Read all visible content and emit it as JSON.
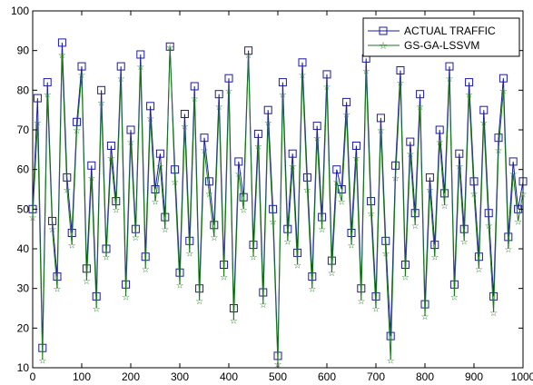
{
  "chart_data": {
    "type": "line",
    "title": "",
    "xlabel": "",
    "ylabel": "",
    "xlim": [
      0,
      1000
    ],
    "ylim": [
      10,
      100
    ],
    "xticks": [
      0,
      100,
      200,
      300,
      400,
      500,
      600,
      700,
      800,
      900,
      1000
    ],
    "yticks": [
      10,
      20,
      30,
      40,
      50,
      60,
      70,
      80,
      90,
      100
    ],
    "grid": false,
    "legend_position": "top-right",
    "series": [
      {
        "name": "ACTUAL TRAFFIC",
        "color": "#1a1aa6",
        "marker": "square",
        "x": [
          0,
          10,
          20,
          30,
          40,
          50,
          60,
          70,
          80,
          90,
          100,
          110,
          120,
          130,
          140,
          150,
          160,
          170,
          180,
          190,
          200,
          210,
          220,
          230,
          240,
          250,
          260,
          270,
          280,
          290,
          300,
          310,
          320,
          330,
          340,
          350,
          360,
          370,
          380,
          390,
          400,
          410,
          420,
          430,
          440,
          450,
          460,
          470,
          480,
          490,
          500,
          510,
          520,
          530,
          540,
          550,
          560,
          570,
          580,
          590,
          600,
          610,
          620,
          630,
          640,
          650,
          660,
          670,
          680,
          690,
          700,
          710,
          720,
          730,
          740,
          750,
          760,
          770,
          780,
          790,
          800,
          810,
          820,
          830,
          840,
          850,
          860,
          870,
          880,
          890,
          900,
          910,
          920,
          930,
          940,
          950,
          960,
          970,
          980,
          990,
          1000
        ],
        "values": [
          50,
          78,
          15,
          82,
          47,
          33,
          92,
          58,
          44,
          72,
          86,
          35,
          61,
          28,
          80,
          40,
          66,
          52,
          86,
          31,
          70,
          45,
          89,
          38,
          76,
          55,
          64,
          48,
          91,
          60,
          34,
          74,
          42,
          81,
          30,
          68,
          57,
          46,
          79,
          36,
          83,
          25,
          62,
          53,
          90,
          41,
          69,
          29,
          75,
          50,
          13,
          82,
          45,
          64,
          39,
          87,
          58,
          33,
          71,
          48,
          84,
          37,
          60,
          55,
          77,
          44,
          66,
          30,
          88,
          52,
          28,
          73,
          42,
          18,
          61,
          85,
          36,
          67,
          49,
          79,
          26,
          58,
          41,
          70,
          54,
          86,
          31,
          64,
          45,
          82,
          57,
          38,
          75,
          49,
          28,
          68,
          83,
          43,
          62,
          50,
          57
        ]
      },
      {
        "name": "GS-GA-LSSVM",
        "color": "#1a7a1a",
        "marker": "star",
        "x": [
          0,
          10,
          20,
          30,
          40,
          50,
          60,
          70,
          80,
          90,
          100,
          110,
          120,
          130,
          140,
          150,
          160,
          170,
          180,
          190,
          200,
          210,
          220,
          230,
          240,
          250,
          260,
          270,
          280,
          290,
          300,
          310,
          320,
          330,
          340,
          350,
          360,
          370,
          380,
          390,
          400,
          410,
          420,
          430,
          440,
          450,
          460,
          470,
          480,
          490,
          500,
          510,
          520,
          530,
          540,
          550,
          560,
          570,
          580,
          590,
          600,
          610,
          620,
          630,
          640,
          650,
          660,
          670,
          680,
          690,
          700,
          710,
          720,
          730,
          740,
          750,
          760,
          770,
          780,
          790,
          800,
          810,
          820,
          830,
          840,
          850,
          860,
          870,
          880,
          890,
          900,
          910,
          920,
          930,
          940,
          950,
          960,
          970,
          980,
          990,
          1000
        ],
        "values": [
          48,
          72,
          12,
          79,
          45,
          30,
          89,
          55,
          41,
          70,
          84,
          32,
          58,
          25,
          77,
          38,
          63,
          50,
          83,
          28,
          67,
          43,
          86,
          35,
          73,
          52,
          61,
          45,
          91,
          57,
          31,
          71,
          39,
          78,
          27,
          65,
          54,
          43,
          76,
          33,
          80,
          22,
          59,
          50,
          89,
          38,
          66,
          26,
          72,
          47,
          11,
          79,
          42,
          61,
          36,
          84,
          55,
          30,
          68,
          45,
          81,
          34,
          57,
          52,
          74,
          41,
          63,
          27,
          85,
          49,
          25,
          70,
          39,
          12,
          58,
          82,
          33,
          64,
          46,
          76,
          23,
          55,
          38,
          67,
          51,
          83,
          28,
          61,
          42,
          79,
          54,
          35,
          72,
          46,
          24,
          65,
          80,
          40,
          59,
          47,
          54
        ]
      }
    ]
  }
}
